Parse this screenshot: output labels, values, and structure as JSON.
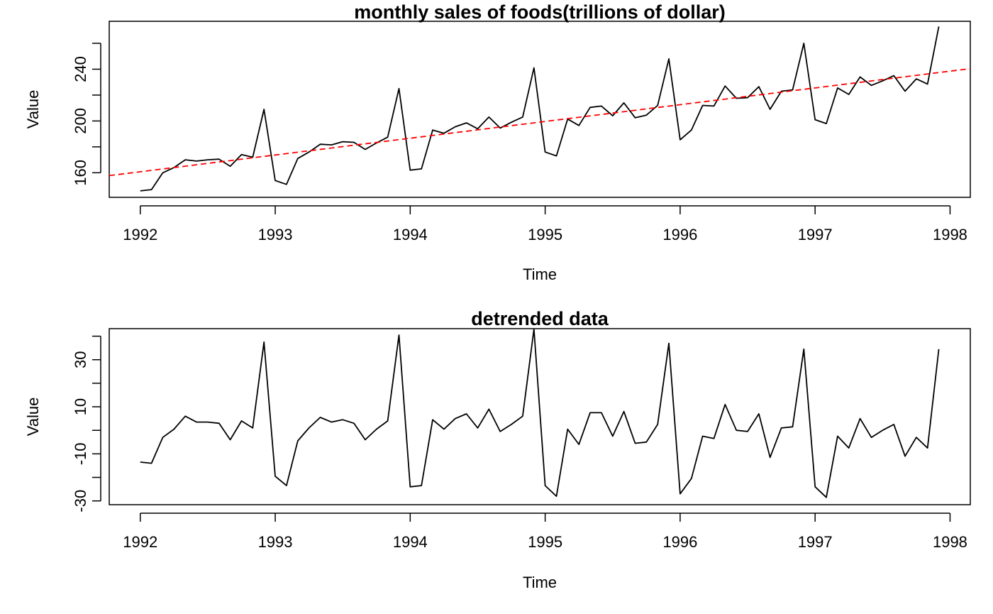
{
  "chart_data": [
    {
      "type": "line",
      "title": "monthly sales of foods(trillions of dollar)",
      "xlabel": "Time",
      "ylabel": "Value",
      "xlim": [
        1991.77,
        1998.15
      ],
      "ylim": [
        141,
        277
      ],
      "x_ticks": [
        1992,
        1993,
        1994,
        1995,
        1996,
        1997,
        1998
      ],
      "y_ticks": [
        160,
        180,
        200,
        220,
        240,
        260
      ],
      "y_tick_labels": [
        "160",
        "200",
        "240"
      ],
      "grid": false,
      "series": [
        {
          "color": "#000000",
          "dash": "solid",
          "start": 1992,
          "frequency": 12,
          "values": [
            146,
            147,
            160,
            164,
            170,
            169,
            170,
            170.5,
            165,
            174,
            172,
            209,
            154,
            151,
            171,
            176,
            182,
            181.5,
            184,
            183.5,
            178,
            183,
            187.5,
            225,
            162,
            163,
            193,
            190.5,
            195.5,
            198.5,
            194,
            203,
            194.5,
            199,
            203,
            241,
            176,
            173,
            201.5,
            196.5,
            210.5,
            211.5,
            204,
            214,
            202.5,
            204.5,
            212,
            248,
            185.5,
            193,
            212,
            211.5,
            227,
            217.5,
            218,
            226.5,
            209,
            223,
            224,
            260,
            201,
            198,
            225.5,
            220.5,
            234,
            227.5,
            231,
            235,
            223,
            232.5,
            228.5,
            273
          ]
        },
        {
          "color": "#ff0000",
          "dash": "dashed",
          "x": [
            1991.77,
            1998.15
          ],
          "values": [
            157.8,
            240.4
          ]
        }
      ]
    },
    {
      "type": "line",
      "title": "detrended data",
      "xlabel": "Time",
      "ylabel": "Value",
      "xlim": [
        1991.77,
        1998.15
      ],
      "ylim": [
        -31.6,
        43.2
      ],
      "x_ticks": [
        1992,
        1993,
        1994,
        1995,
        1996,
        1997,
        1998
      ],
      "y_ticks": [
        -30,
        -20,
        -10,
        0,
        10,
        20,
        30,
        40
      ],
      "y_tick_labels": [
        "-30",
        "-10",
        "10",
        "30"
      ],
      "grid": false,
      "series": [
        {
          "color": "#000000",
          "dash": "solid",
          "start": 1992,
          "frequency": 12,
          "values": [
            -13.5,
            -14,
            -3,
            0.5,
            6,
            3.5,
            3.5,
            3,
            -4,
            4,
            1,
            37.5,
            -19.5,
            -23.5,
            -4.5,
            1,
            5.5,
            3.5,
            4.5,
            3,
            -4,
            0.5,
            4,
            40.5,
            -24,
            -23.5,
            4.5,
            0.5,
            5,
            7,
            1,
            9,
            -0.5,
            2.5,
            6,
            43,
            -23.5,
            -28,
            0.5,
            -6,
            7.5,
            7.5,
            -2.5,
            8,
            -5.5,
            -5,
            2.5,
            37,
            -27,
            -20.5,
            -2.5,
            -3.5,
            11,
            0,
            -0.5,
            7,
            -11.5,
            1,
            1.5,
            34.5,
            -24,
            -28.5,
            -2.5,
            -7.5,
            5,
            -3,
            0,
            2.5,
            -11,
            -3,
            -7.5,
            34.5
          ]
        }
      ]
    }
  ]
}
